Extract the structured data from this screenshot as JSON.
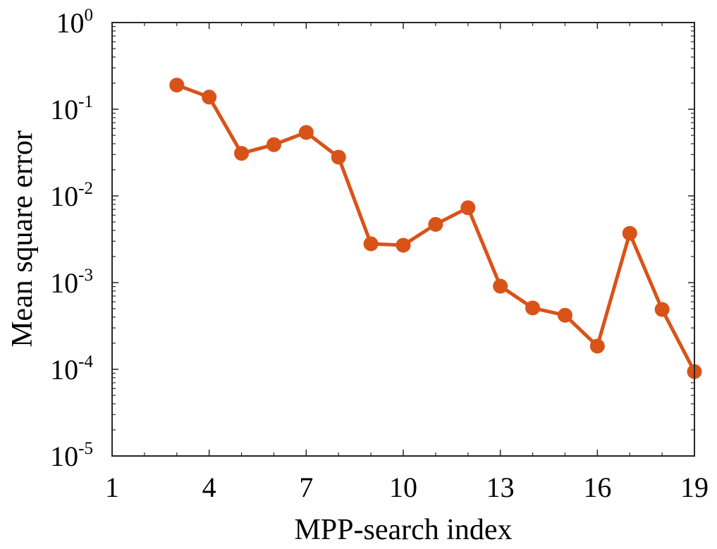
{
  "chart_data": {
    "type": "line",
    "xlabel": "MPP-search index",
    "ylabel": "Mean square error",
    "xlim": [
      1,
      19
    ],
    "ylim": [
      1e-05,
      1
    ],
    "yscale": "log",
    "x_ticks": [
      1,
      4,
      7,
      10,
      13,
      16,
      19
    ],
    "x_tick_labels": [
      "1",
      "4",
      "7",
      "10",
      "13",
      "16",
      "19"
    ],
    "y_ticks": [
      1e-05,
      0.0001,
      0.001,
      0.01,
      0.1,
      1
    ],
    "y_tick_labels": [
      {
        "base": "10",
        "exp": "-5"
      },
      {
        "base": "10",
        "exp": "-4"
      },
      {
        "base": "10",
        "exp": "-3"
      },
      {
        "base": "10",
        "exp": "-2"
      },
      {
        "base": "10",
        "exp": "-1"
      },
      {
        "base": "10",
        "exp": "0"
      }
    ],
    "grid": false,
    "series": [
      {
        "color": "#d95319",
        "marker": "circle",
        "x": [
          3,
          4,
          5,
          6,
          7,
          8,
          9,
          10,
          11,
          12,
          13,
          14,
          15,
          16,
          17,
          18,
          19
        ],
        "y": [
          0.19,
          0.138,
          0.031,
          0.039,
          0.054,
          0.028,
          0.0028,
          0.0027,
          0.0047,
          0.0073,
          0.00091,
          0.00051,
          0.00042,
          0.000185,
          0.0037,
          0.00049,
          9.4e-05
        ]
      }
    ]
  }
}
